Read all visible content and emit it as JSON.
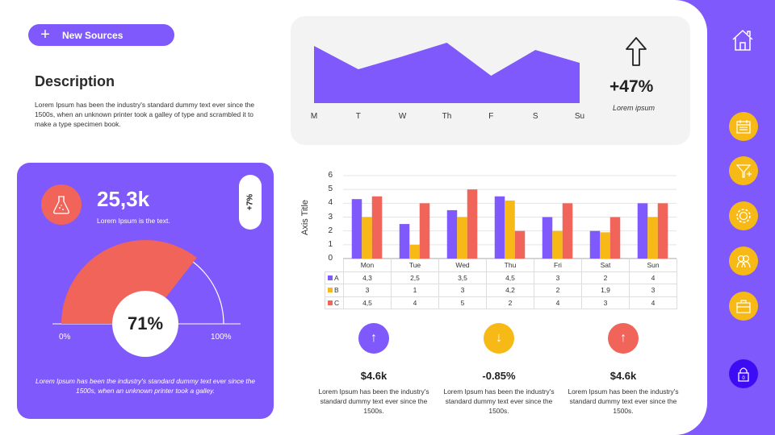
{
  "header": {
    "new_sources_label": "New Sources"
  },
  "description": {
    "title": "Description",
    "text": "Lorem Ipsum has been the industry's standard dummy text ever since the 1500s, when an unknown printer took a galley of type and scrambled it to make a type specimen book."
  },
  "area_summary": {
    "value": "+47%",
    "caption": "Lorem ipsum"
  },
  "kpi_card": {
    "value": "25,3k",
    "subtitle": "Lorem Ipsum is the text.",
    "badge": "+7%",
    "gauge_label": "71%",
    "gauge_min": "0%",
    "gauge_max": "100%",
    "text": "Lorem Ipsum has been the industry's standard dummy text ever since the 1500s, when an unknown printer took a galley."
  },
  "chart_data": [
    {
      "type": "area",
      "categories": [
        "M",
        "T",
        "W",
        "Th",
        "F",
        "S",
        "Su"
      ],
      "values": [
        71,
        42,
        58,
        75,
        34,
        66,
        50
      ],
      "color": "#7f59fb",
      "grid": false
    },
    {
      "type": "bar",
      "categories": [
        "Mon",
        "Tue",
        "Wed",
        "Thu",
        "Fri",
        "Sat",
        "Sun"
      ],
      "ylabel": "Axis Title",
      "ylim": [
        0,
        6
      ],
      "yticks": [
        0,
        1,
        2,
        3,
        4,
        5,
        6
      ],
      "grid": true,
      "legend": "data-table",
      "series": [
        {
          "name": "A",
          "color": "#7f59fb",
          "values": [
            4.3,
            2.5,
            3.5,
            4.5,
            3,
            2,
            4
          ],
          "labels": [
            "4,3",
            "2,5",
            "3,5",
            "4,5",
            "3",
            "2",
            "4"
          ]
        },
        {
          "name": "B",
          "color": "#f6b915",
          "values": [
            3,
            1,
            3,
            4.2,
            2,
            1.9,
            3
          ],
          "labels": [
            "3",
            "1",
            "3",
            "4,2",
            "2",
            "1,9",
            "3"
          ]
        },
        {
          "name": "C",
          "color": "#f0645a",
          "values": [
            4.5,
            4,
            5,
            2,
            4,
            3,
            4
          ],
          "labels": [
            "4,5",
            "4",
            "5",
            "2",
            "4",
            "3",
            "4"
          ]
        }
      ]
    },
    {
      "type": "gauge",
      "value": 71,
      "color": "#f0645a"
    }
  ],
  "stats": [
    {
      "icon": "arrow-up-icon",
      "glyph": "↑",
      "color": "#7f59fb",
      "value": "$4.6k",
      "text": "Lorem Ipsum has been the industry's standard dummy text ever since the 1500s."
    },
    {
      "icon": "arrow-down-icon",
      "glyph": "↓",
      "color": "#f6b915",
      "value": "-0.85%",
      "text": "Lorem Ipsum has been the industry's standard dummy text ever since the 1500s."
    },
    {
      "icon": "arrow-up-icon",
      "glyph": "↑",
      "color": "#f0645a",
      "value": "$4.6k",
      "text": "Lorem Ipsum has been the industry's standard dummy text ever since the 1500s."
    }
  ],
  "sidebar": {
    "items": [
      "home",
      "calendar",
      "filter-add",
      "settings",
      "users",
      "briefcase",
      "lock"
    ],
    "lock_badge": "0",
    "accent": "#f6b915",
    "lock_color": "#3d0cf5"
  }
}
